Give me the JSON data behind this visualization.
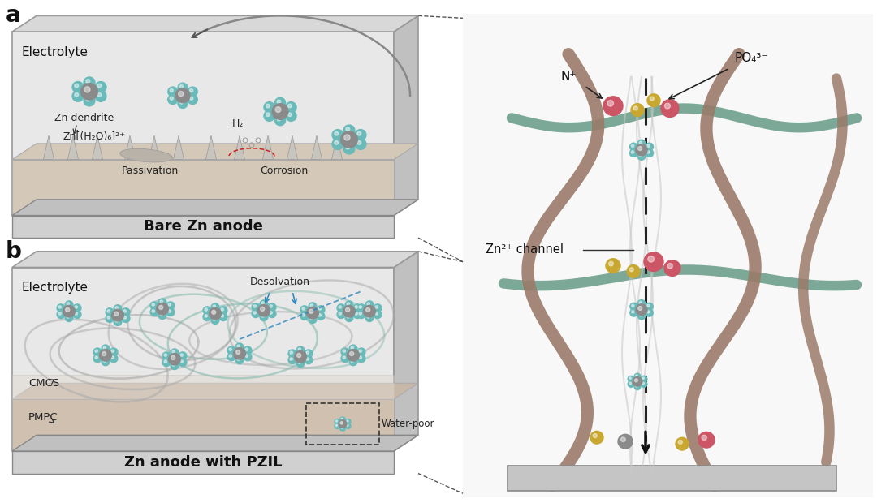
{
  "bg_color": "#ffffff",
  "panel_a_label": "a",
  "panel_b_label": "b",
  "box_a_bottom_label": "Bare Zn anode",
  "box_b_bottom_label": "Zn anode with PZIL",
  "label_electrolyte": "Electrolyte",
  "label_zn_formula": "Zn[(H₂O)₆]²⁺",
  "label_zn_dendrite": "Zn dendrite",
  "label_passivation": "Passivation",
  "label_corrosion": "Corrosion",
  "label_h2": "H₂",
  "label_desolvation": "Desolvation",
  "label_cmcs": "CMCS",
  "label_pmpc": "PMPC",
  "label_water_poor": "Water-poor",
  "label_zn_channel": "Zn²⁺ channel",
  "label_nplus": "N⁺",
  "label_po4": "PO₄³⁻",
  "box_top_color": "#c8c8c8",
  "box_side_color": "#b0b0b0",
  "box_face_a": "#e8e8e8",
  "box_face_b": "#e8e8e8",
  "floor_color_a": "#d4c8b8",
  "floor_color_b": "#d8ccbc",
  "pmpc_color": "#cfc0b0",
  "gray_sphere": "#8a8a8a",
  "teal_sphere": "#6bbaba",
  "teal_sphere2": "#5aafaf",
  "polymer_gray": "#a8a8a8",
  "polymer_teal": "#8abcb0",
  "brown_polymer": "#9b7b6a",
  "green_polymer": "#6b9e8a",
  "pink_sphere": "#cc5566",
  "yellow_connector": "#c8a830",
  "dashed_color": "#333333",
  "red_dashed": "#cc2222",
  "blue_dashed": "#3388bb",
  "label_band_color": "#d0d0d0",
  "bottom_text_color": "#111111",
  "rp_bg": "#f8f8f8"
}
